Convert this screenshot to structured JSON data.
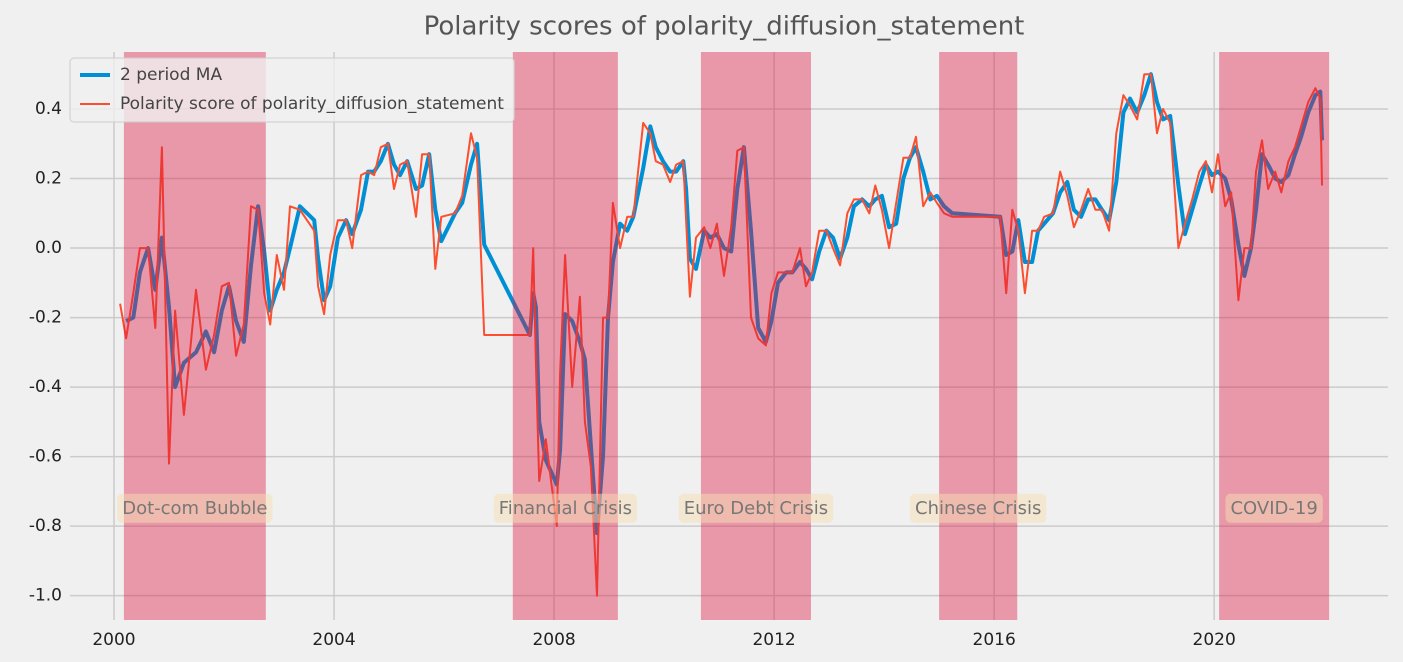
{
  "chart_data": {
    "type": "line",
    "title": "Polarity scores of polarity_diffusion_statement",
    "x": [
      2000.11,
      2000.22,
      2000.35,
      2000.47,
      2000.62,
      2000.75,
      2000.87,
      2001.0,
      2001.11,
      2001.27,
      2001.49,
      2001.67,
      2001.82,
      2001.96,
      2002.09,
      2002.22,
      2002.36,
      2002.49,
      2002.62,
      2002.73,
      2002.84,
      2002.96,
      2003.09,
      2003.2,
      2003.38,
      2003.64,
      2003.71,
      2003.82,
      2003.93,
      2004.07,
      2004.22,
      2004.33,
      2004.49,
      2004.62,
      2004.73,
      2004.85,
      2004.98,
      2005.09,
      2005.2,
      2005.33,
      2005.49,
      2005.6,
      2005.73,
      2005.84,
      2005.95,
      2006.2,
      2006.33,
      2006.49,
      2006.6,
      2006.73,
      2007.56,
      2007.62,
      2007.67,
      2007.73,
      2007.85,
      2008.05,
      2008.11,
      2008.2,
      2008.33,
      2008.47,
      2008.56,
      2008.67,
      2008.78,
      2008.89,
      2008.98,
      2009.07,
      2009.2,
      2009.33,
      2009.44,
      2009.62,
      2009.75,
      2009.85,
      2009.98,
      2010.11,
      2010.22,
      2010.35,
      2010.4,
      2010.47,
      2010.58,
      2010.73,
      2010.84,
      2010.96,
      2011.09,
      2011.22,
      2011.33,
      2011.45,
      2011.58,
      2011.71,
      2011.85,
      2011.95,
      2012.07,
      2012.22,
      2012.33,
      2012.47,
      2012.58,
      2012.69,
      2012.82,
      2012.95,
      2013.07,
      2013.2,
      2013.33,
      2013.45,
      2013.6,
      2013.73,
      2013.84,
      2013.96,
      2014.09,
      2014.22,
      2014.35,
      2014.47,
      2014.58,
      2014.71,
      2014.84,
      2014.96,
      2015.09,
      2015.24,
      2016.11,
      2016.22,
      2016.33,
      2016.44,
      2016.56,
      2016.69,
      2016.8,
      2016.91,
      2017.07,
      2017.2,
      2017.33,
      2017.45,
      2017.58,
      2017.71,
      2017.84,
      2017.96,
      2018.09,
      2018.22,
      2018.35,
      2018.47,
      2018.6,
      2018.73,
      2018.85,
      2018.96,
      2019.07,
      2019.2,
      2019.35,
      2019.47,
      2019.6,
      2019.73,
      2019.85,
      2019.96,
      2020.07,
      2020.2,
      2020.31,
      2020.44,
      2020.55,
      2020.67,
      2020.76,
      2020.87,
      2020.98,
      2021.11,
      2021.22,
      2021.35,
      2021.47,
      2021.58,
      2021.71,
      2021.84,
      2021.93,
      2021.96
    ],
    "series": [
      {
        "name": "2 period MA",
        "color": "#008fd5",
        "width": 4,
        "values": [
          null,
          -0.21,
          -0.2,
          -0.07,
          0.0,
          -0.12,
          0.03,
          -0.17,
          -0.4,
          -0.33,
          -0.3,
          -0.24,
          -0.3,
          -0.18,
          -0.11,
          -0.21,
          -0.27,
          -0.05,
          0.12,
          -0.01,
          -0.18,
          -0.12,
          -0.07,
          0.0,
          0.12,
          0.08,
          -0.03,
          -0.15,
          -0.11,
          0.03,
          0.08,
          0.04,
          0.11,
          0.22,
          0.22,
          0.25,
          0.3,
          0.24,
          0.21,
          0.25,
          0.17,
          0.18,
          0.27,
          0.11,
          0.02,
          0.1,
          0.13,
          0.24,
          0.3,
          0.01,
          -0.25,
          -0.13,
          -0.17,
          -0.5,
          -0.61,
          -0.68,
          -0.58,
          -0.19,
          -0.21,
          -0.27,
          -0.32,
          -0.57,
          -0.82,
          -0.6,
          -0.2,
          -0.04,
          0.07,
          0.05,
          0.09,
          0.23,
          0.35,
          0.29,
          0.25,
          0.22,
          0.22,
          0.25,
          0.17,
          -0.03,
          -0.06,
          0.05,
          0.03,
          0.04,
          0.0,
          -0.01,
          0.17,
          0.29,
          0.05,
          -0.23,
          -0.27,
          -0.21,
          -0.1,
          -0.07,
          -0.07,
          -0.04,
          -0.06,
          -0.09,
          -0.01,
          0.05,
          0.03,
          -0.03,
          0.03,
          0.12,
          0.14,
          0.12,
          0.14,
          0.15,
          0.06,
          0.07,
          0.2,
          0.26,
          0.29,
          0.22,
          0.14,
          0.15,
          0.12,
          0.1,
          0.09,
          -0.02,
          -0.01,
          0.08,
          -0.04,
          -0.04,
          0.05,
          0.07,
          0.1,
          0.16,
          0.19,
          0.11,
          0.09,
          0.14,
          0.14,
          0.11,
          0.08,
          0.19,
          0.39,
          0.43,
          0.39,
          0.44,
          0.5,
          0.42,
          0.37,
          0.38,
          0.18,
          0.04,
          0.11,
          0.18,
          0.24,
          0.21,
          0.22,
          0.2,
          0.14,
          0.01,
          -0.08,
          0.0,
          0.11,
          0.27,
          0.24,
          0.2,
          0.19,
          0.21,
          0.27,
          0.32,
          0.39,
          0.44,
          0.45,
          0.31
        ]
      },
      {
        "name": "Polarity score of polarity_diffusion_statement",
        "color": "#fc4f30",
        "width": 2,
        "values": [
          -0.16,
          -0.26,
          -0.13,
          0.0,
          0.0,
          -0.23,
          0.29,
          -0.62,
          -0.18,
          -0.48,
          -0.12,
          -0.35,
          -0.25,
          -0.11,
          -0.1,
          -0.31,
          -0.22,
          0.12,
          0.11,
          -0.13,
          -0.22,
          -0.02,
          -0.12,
          0.12,
          0.11,
          0.05,
          -0.11,
          -0.19,
          -0.02,
          0.08,
          0.08,
          0.0,
          0.21,
          0.22,
          0.21,
          0.29,
          0.3,
          0.17,
          0.24,
          0.25,
          0.09,
          0.27,
          0.27,
          -0.06,
          0.09,
          0.1,
          0.15,
          0.33,
          0.26,
          -0.25,
          -0.25,
          0.0,
          -0.33,
          -0.67,
          -0.55,
          -0.8,
          -0.36,
          -0.02,
          -0.4,
          -0.14,
          -0.5,
          -0.63,
          -1.0,
          -0.2,
          -0.2,
          0.13,
          0.0,
          0.09,
          0.09,
          0.36,
          0.33,
          0.25,
          0.24,
          0.19,
          0.24,
          0.25,
          0.08,
          -0.14,
          0.03,
          0.06,
          0.0,
          0.07,
          -0.08,
          0.06,
          0.28,
          0.29,
          -0.2,
          -0.26,
          -0.28,
          -0.13,
          -0.07,
          -0.07,
          -0.07,
          0.0,
          -0.11,
          -0.07,
          0.05,
          0.05,
          0.0,
          -0.05,
          0.1,
          0.14,
          0.14,
          0.1,
          0.18,
          0.11,
          0.0,
          0.13,
          0.26,
          0.26,
          0.32,
          0.12,
          0.16,
          0.13,
          0.1,
          0.09,
          0.09,
          -0.13,
          0.11,
          0.05,
          -0.13,
          0.05,
          0.05,
          0.09,
          0.1,
          0.22,
          0.15,
          0.06,
          0.11,
          0.17,
          0.11,
          0.11,
          0.05,
          0.33,
          0.44,
          0.41,
          0.37,
          0.5,
          0.5,
          0.33,
          0.4,
          0.36,
          0.0,
          0.07,
          0.14,
          0.22,
          0.25,
          0.16,
          0.27,
          0.12,
          0.16,
          -0.15,
          0.0,
          0.0,
          0.22,
          0.31,
          0.17,
          0.22,
          0.16,
          0.25,
          0.29,
          0.35,
          0.42,
          0.46,
          0.43,
          0.18
        ]
      }
    ],
    "shaded_periods": [
      {
        "label": "Dot-com Bubble",
        "start": 2000.18,
        "end": 2002.76
      },
      {
        "label": "Financial Crisis",
        "start": 2007.25,
        "end": 2009.16
      },
      {
        "label": "Euro Debt Crisis",
        "start": 2010.67,
        "end": 2012.67
      },
      {
        "label": "Chinese Crisis",
        "start": 2015.0,
        "end": 2016.42
      },
      {
        "label": "COVID-19",
        "start": 2020.09,
        "end": 2022.09
      }
    ],
    "shade_color": "#dc143c",
    "shade_label_y": -0.75,
    "xlim": [
      1999.2,
      2023.16
    ],
    "xticks": [
      2000,
      2004,
      2008,
      2012,
      2016,
      2020
    ],
    "ylim": [
      -1.07,
      0.564
    ],
    "yticks": [
      {
        "value": -1.0,
        "label": "-1.0"
      },
      -0.8,
      -0.6,
      -0.4,
      -0.2,
      {
        "value": 0.0,
        "label": "0.0"
      },
      0.2,
      0.4
    ],
    "grid": true,
    "legend": "upper left"
  }
}
